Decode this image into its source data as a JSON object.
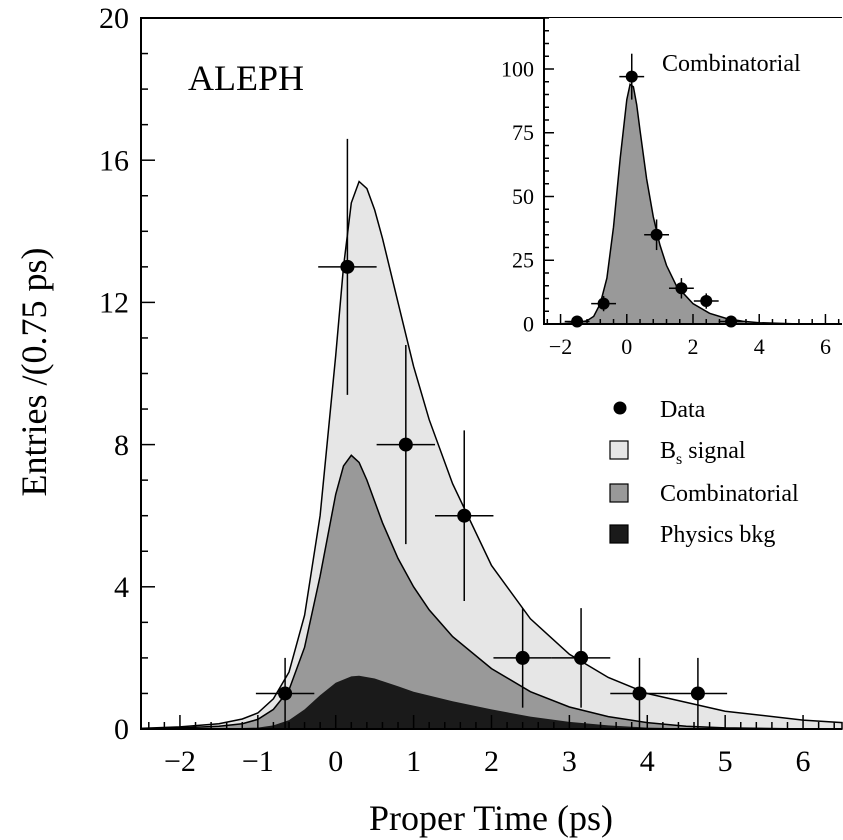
{
  "chart_data": [
    {
      "type": "area",
      "title": "ALEPH",
      "xlabel": "Proper Time (ps)",
      "ylabel": "Entries /(0.75 ps)",
      "xlim": [
        -2.5,
        6.5
      ],
      "ylim": [
        0,
        20
      ],
      "xticks": [
        -2,
        -1,
        0,
        1,
        2,
        3,
        4,
        5,
        6
      ],
      "xtick_labels": [
        "−2",
        "−1",
        "0",
        "1",
        "2",
        "3",
        "4",
        "5",
        "6"
      ],
      "yticks": [
        0,
        4,
        8,
        12,
        16,
        20
      ],
      "ytick_labels": [
        "0",
        "4",
        "8",
        "12",
        "16",
        "20"
      ],
      "grid": false,
      "legend_position": "middle-right",
      "legend": [
        {
          "marker": "dot",
          "label": "Data"
        },
        {
          "marker": "box",
          "color": "#e6e6e6",
          "label_main": "B",
          "label_sub": "s",
          "label_tail": " signal"
        },
        {
          "marker": "box",
          "color": "#999999",
          "label": "Combinatorial"
        },
        {
          "marker": "box",
          "color": "#1a1a1a",
          "label": "Physics bkg"
        }
      ],
      "points": [
        {
          "x": -0.65,
          "y": 1,
          "xerr": 0.375,
          "yerr_lo": 1,
          "yerr_hi": 1
        },
        {
          "x": 0.15,
          "y": 13,
          "xerr": 0.375,
          "yerr_lo": 3.6,
          "yerr_hi": 3.6
        },
        {
          "x": 0.9,
          "y": 8,
          "xerr": 0.375,
          "yerr_lo": 2.8,
          "yerr_hi": 2.8
        },
        {
          "x": 1.65,
          "y": 6,
          "xerr": 0.375,
          "yerr_lo": 2.4,
          "yerr_hi": 2.4
        },
        {
          "x": 2.4,
          "y": 2,
          "xerr": 0.375,
          "yerr_lo": 1.4,
          "yerr_hi": 1.4
        },
        {
          "x": 3.15,
          "y": 2,
          "xerr": 0.375,
          "yerr_lo": 1.4,
          "yerr_hi": 1.4
        },
        {
          "x": 3.9,
          "y": 1,
          "xerr": 0.375,
          "yerr_lo": 1,
          "yerr_hi": 1
        },
        {
          "x": 4.65,
          "y": 1,
          "xerr": 0.375,
          "yerr_lo": 1,
          "yerr_hi": 1
        }
      ],
      "curves": {
        "total": {
          "color": "#e6e6e6",
          "x": [
            -2.5,
            -2.0,
            -1.5,
            -1.2,
            -1.0,
            -0.8,
            -0.6,
            -0.4,
            -0.2,
            0.0,
            0.1,
            0.2,
            0.3,
            0.4,
            0.5,
            0.6,
            0.8,
            1.0,
            1.2,
            1.5,
            2.0,
            2.5,
            3.0,
            3.5,
            4.0,
            5.0,
            6.0,
            6.5
          ],
          "y": [
            0.02,
            0.06,
            0.15,
            0.28,
            0.45,
            0.85,
            1.6,
            3.2,
            6.0,
            10.5,
            13.0,
            14.8,
            15.4,
            15.2,
            14.6,
            13.8,
            12.0,
            10.2,
            8.7,
            6.9,
            4.6,
            3.1,
            2.1,
            1.45,
            1.0,
            0.5,
            0.25,
            0.18
          ]
        },
        "combinatorial": {
          "color": "#999999",
          "x": [
            -2.5,
            -2.0,
            -1.5,
            -1.2,
            -1.0,
            -0.8,
            -0.6,
            -0.4,
            -0.2,
            0.0,
            0.1,
            0.2,
            0.3,
            0.4,
            0.5,
            0.6,
            0.8,
            1.0,
            1.2,
            1.5,
            2.0,
            2.5,
            3.0,
            3.5,
            4.0,
            4.5,
            5.0,
            6.0,
            6.5
          ],
          "y": [
            0.01,
            0.03,
            0.08,
            0.15,
            0.27,
            0.55,
            1.1,
            2.3,
            4.3,
            6.6,
            7.4,
            7.7,
            7.5,
            7.0,
            6.4,
            5.8,
            4.8,
            4.0,
            3.35,
            2.6,
            1.7,
            1.05,
            0.62,
            0.35,
            0.18,
            0.08,
            0.03,
            0.0,
            0.0
          ]
        },
        "physics_bkg": {
          "color": "#1a1a1a",
          "x": [
            -2.5,
            -1.5,
            -1.0,
            -0.8,
            -0.6,
            -0.4,
            -0.2,
            0.0,
            0.2,
            0.3,
            0.5,
            0.8,
            1.0,
            1.5,
            2.0,
            2.5,
            3.0,
            3.5,
            4.0,
            4.5,
            5.0,
            5.5,
            6.0,
            6.5
          ],
          "y": [
            0.0,
            0.01,
            0.04,
            0.1,
            0.25,
            0.55,
            0.95,
            1.3,
            1.48,
            1.5,
            1.42,
            1.2,
            1.05,
            0.78,
            0.55,
            0.35,
            0.2,
            0.1,
            0.04,
            0.02,
            0.01,
            0.0,
            0.0,
            0.0
          ]
        }
      }
    },
    {
      "type": "area",
      "title": "",
      "label": "Combinatorial",
      "xlim": [
        -2.5,
        6.5
      ],
      "ylim": [
        0,
        120
      ],
      "xticks": [
        -2,
        0,
        2,
        4,
        6
      ],
      "xtick_labels": [
        "−2",
        "0",
        "2",
        "4",
        "6"
      ],
      "yticks": [
        0,
        25,
        50,
        75,
        100
      ],
      "ytick_labels": [
        "0",
        "25",
        "50",
        "75",
        "100"
      ],
      "grid": false,
      "points": [
        {
          "x": -1.5,
          "y": 1,
          "xerr": 0.375,
          "yerr_lo": 1,
          "yerr_hi": 1
        },
        {
          "x": -0.7,
          "y": 8,
          "xerr": 0.375,
          "yerr_lo": 3,
          "yerr_hi": 3
        },
        {
          "x": 0.15,
          "y": 97,
          "xerr": 0.375,
          "yerr_lo": 9,
          "yerr_hi": 9
        },
        {
          "x": 0.9,
          "y": 35,
          "xerr": 0.375,
          "yerr_lo": 6,
          "yerr_hi": 6
        },
        {
          "x": 1.65,
          "y": 14,
          "xerr": 0.375,
          "yerr_lo": 4,
          "yerr_hi": 4
        },
        {
          "x": 2.4,
          "y": 9,
          "xerr": 0.375,
          "yerr_lo": 3,
          "yerr_hi": 3
        },
        {
          "x": 3.15,
          "y": 1,
          "xerr": 0.375,
          "yerr_lo": 1,
          "yerr_hi": 1
        }
      ],
      "curve": {
        "color": "#999999",
        "x": [
          -2.5,
          -2.0,
          -1.5,
          -1.2,
          -1.0,
          -0.8,
          -0.6,
          -0.4,
          -0.2,
          0.0,
          0.1,
          0.2,
          0.3,
          0.4,
          0.6,
          0.8,
          1.0,
          1.2,
          1.5,
          2.0,
          2.5,
          3.0,
          3.5,
          4.0,
          5.0,
          6.0,
          6.5
        ],
        "y": [
          0.0,
          0.1,
          0.5,
          1.3,
          3.0,
          8.0,
          18.0,
          38.0,
          65.0,
          88.0,
          94.0,
          93.0,
          86.0,
          76.0,
          57.0,
          42.0,
          31.0,
          23.0,
          15.0,
          8.0,
          4.2,
          2.2,
          1.1,
          0.5,
          0.1,
          0.0,
          0.0
        ]
      }
    }
  ]
}
